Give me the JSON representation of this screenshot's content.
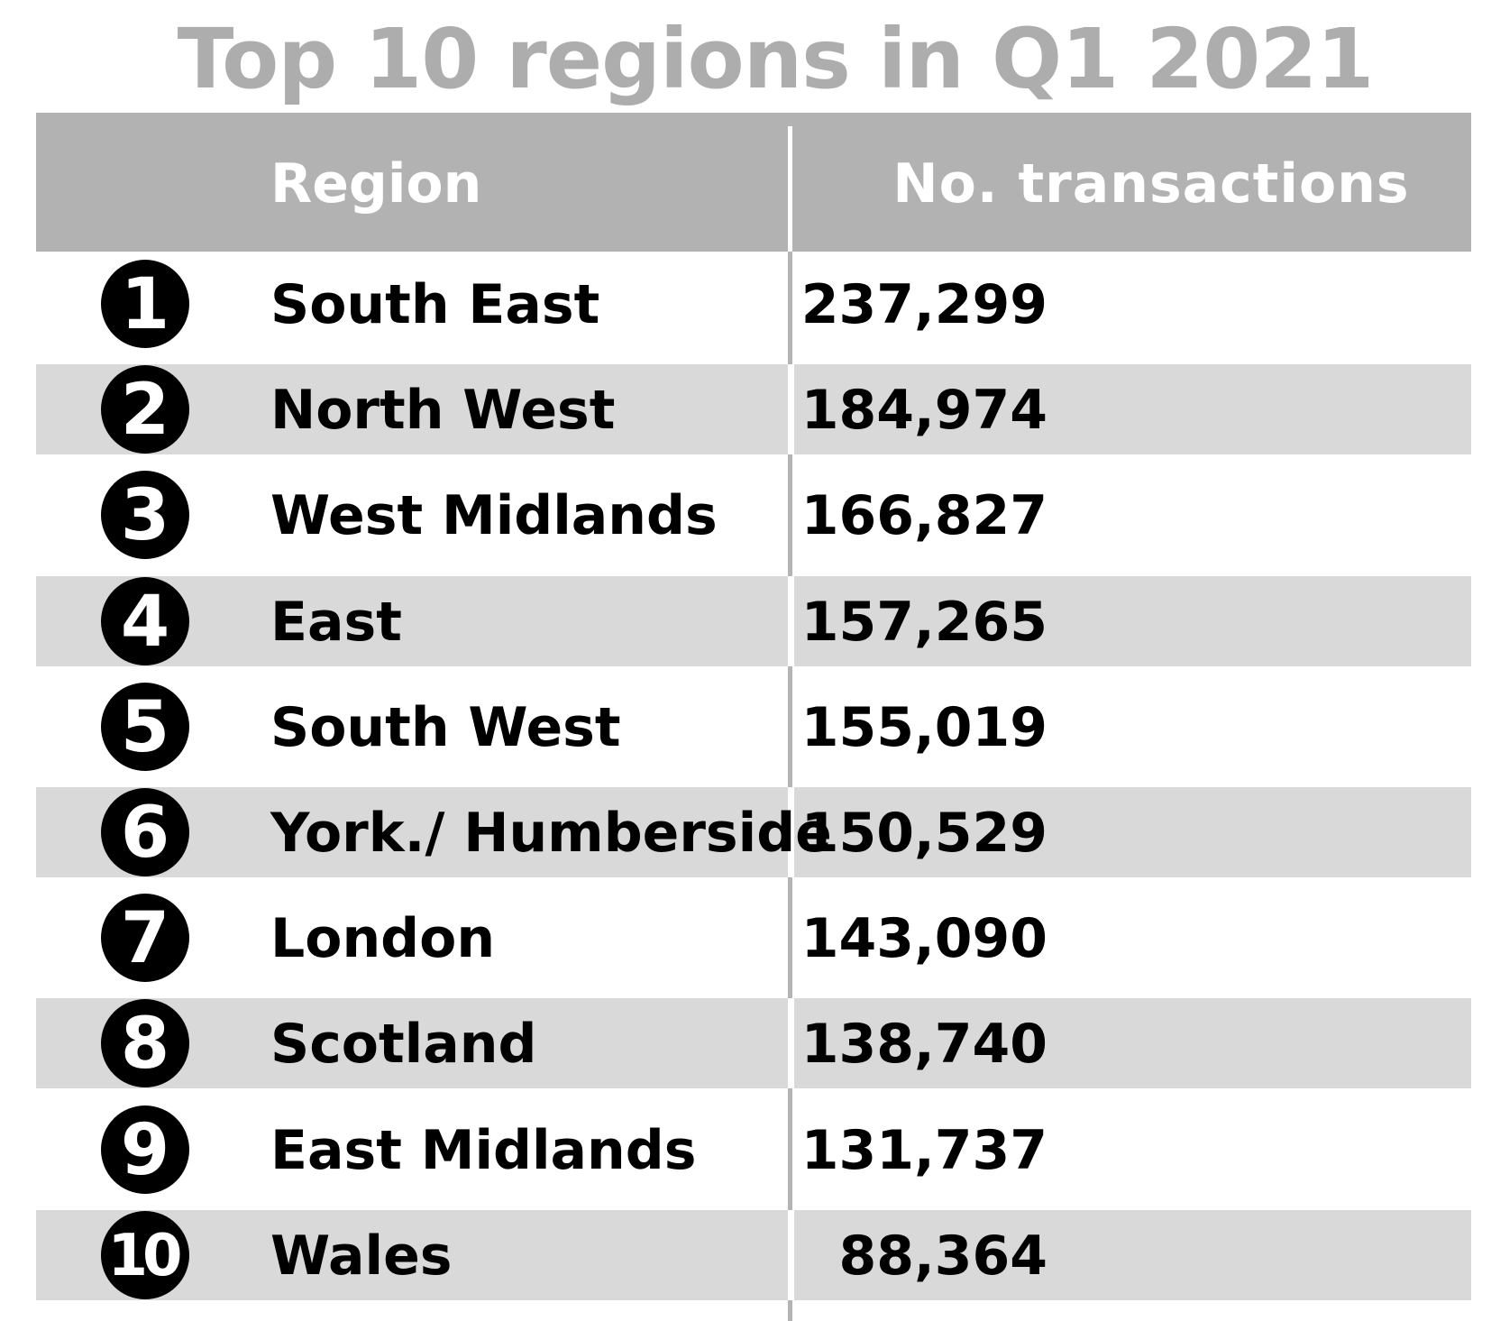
{
  "chart_data": {
    "type": "table",
    "title": "Top 10 regions in Q1 2021",
    "columns": [
      "Region",
      "No. transactions"
    ],
    "rows": [
      {
        "rank": "1",
        "region": "South East",
        "transactions": "237,299",
        "value": 237299
      },
      {
        "rank": "2",
        "region": "North West",
        "transactions": "184,974",
        "value": 184974
      },
      {
        "rank": "3",
        "region": "West Midlands",
        "transactions": "166,827",
        "value": 166827
      },
      {
        "rank": "4",
        "region": "East",
        "transactions": "157,265",
        "value": 157265
      },
      {
        "rank": "5",
        "region": "South West",
        "transactions": "155,019",
        "value": 155019
      },
      {
        "rank": "6",
        "region": "York./ Humberside",
        "transactions": "150,529",
        "value": 150529
      },
      {
        "rank": "7",
        "region": "London",
        "transactions": "143,090",
        "value": 143090
      },
      {
        "rank": "8",
        "region": "Scotland",
        "transactions": "138,740",
        "value": 138740
      },
      {
        "rank": "9",
        "region": "East Midlands",
        "transactions": "131,737",
        "value": 131737
      },
      {
        "rank": "10",
        "region": "Wales",
        "transactions": "88,364",
        "value": 88364
      }
    ]
  },
  "colors": {
    "title": "#adadad",
    "header_bg": "#b2b2b2",
    "header_text": "#ffffff",
    "row_shade": "#d9d9d9",
    "badge_bg": "#000000",
    "text": "#000000"
  }
}
